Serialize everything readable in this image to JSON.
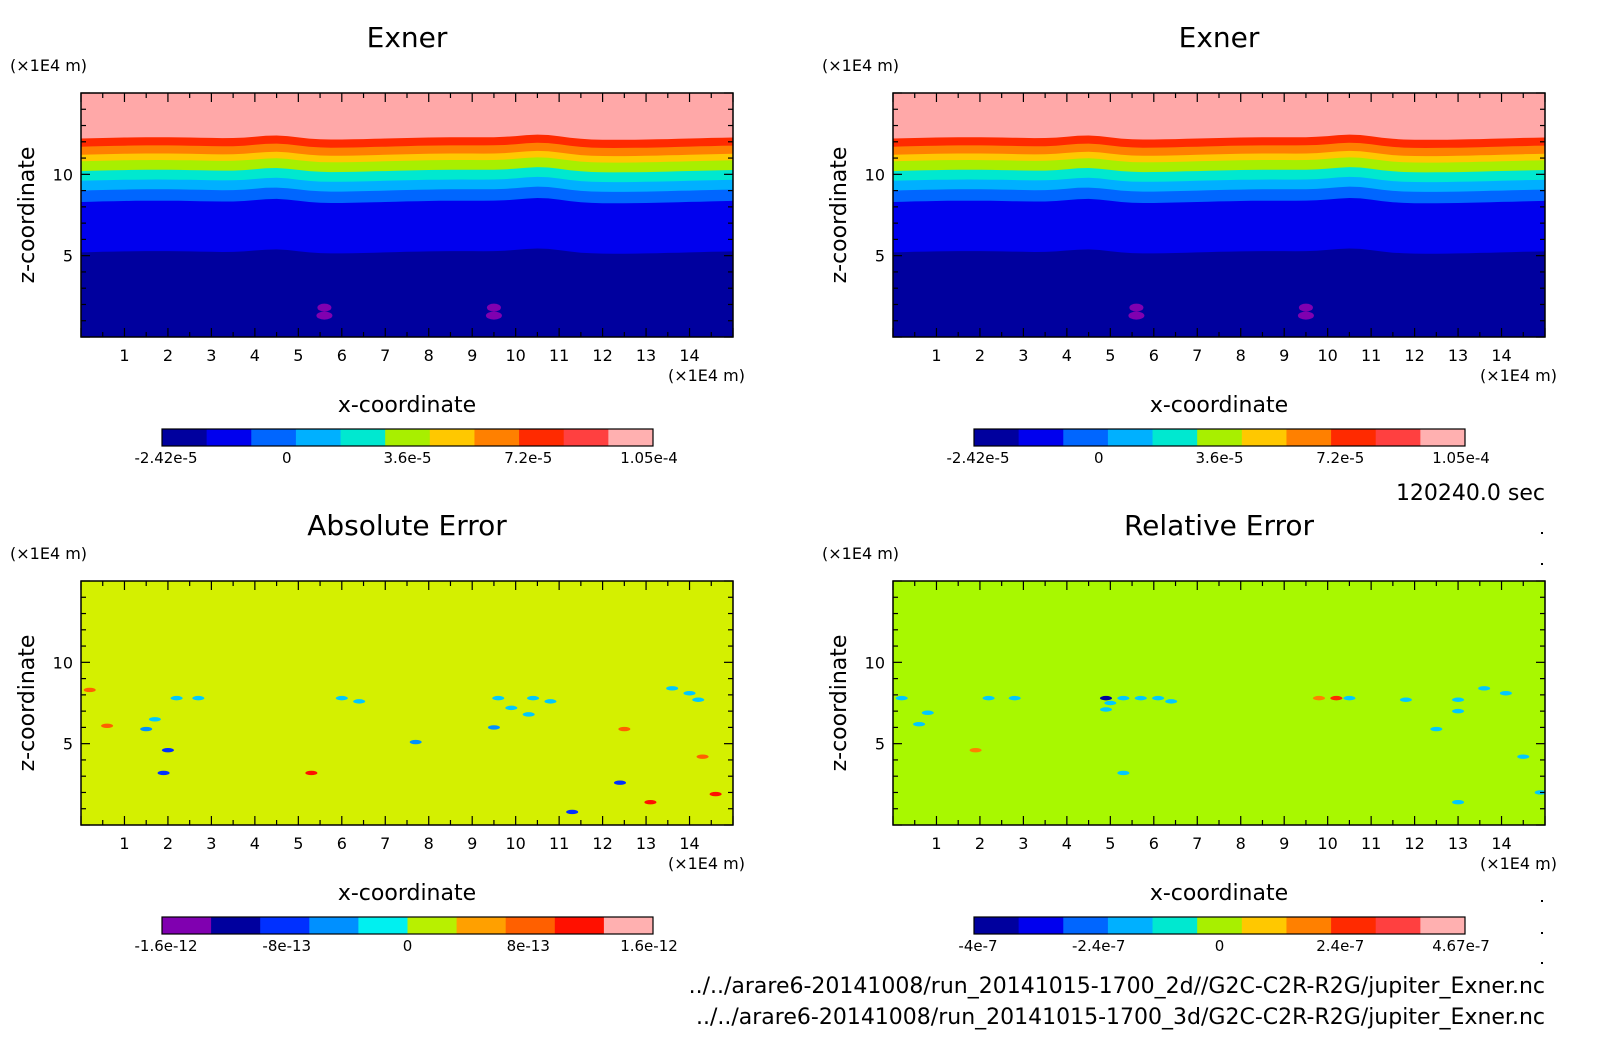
{
  "time_label": "120240.0 sec",
  "files": [
    "../../arare6-20141008/run_20141015-1700_2d//G2C-C2R-R2G/jupiter_Exner.nc",
    "../../arare6-20141008/run_20141015-1700_3d/G2C-C2R-R2G/jupiter_Exner.nc"
  ],
  "chart_data": [
    {
      "type": "heatmap",
      "title": "Exner",
      "xlabel": "x-coordinate",
      "ylabel": "z-coordinate",
      "x_unit": "(×1E4 m)",
      "y_unit": "(×1E4 m)",
      "xlim": [
        0,
        15
      ],
      "ylim": [
        0,
        15
      ],
      "x_ticks": [
        1,
        2,
        3,
        4,
        5,
        6,
        7,
        8,
        9,
        10,
        11,
        12,
        13,
        14
      ],
      "y_ticks": [
        5,
        10
      ],
      "colorbar": {
        "colors": [
          "#00009e",
          "#0000ee",
          "#0066ff",
          "#00b0ff",
          "#00e8d0",
          "#a8ef00",
          "#ffc800",
          "#ff8000",
          "#ff2a00",
          "#ff4040",
          "#ffb0b0"
        ],
        "tick_labels": [
          "-2.42e-5",
          "0",
          "3.6e-5",
          "7.2e-5",
          "1.05e-4"
        ]
      },
      "bands": [
        {
          "z_top": 15,
          "color": "#ffa8a8"
        },
        {
          "z_top": 12.2,
          "color": "#ff2a00"
        },
        {
          "z_top": 11.7,
          "color": "#ff8000"
        },
        {
          "z_top": 11.2,
          "color": "#ffc800"
        },
        {
          "z_top": 10.8,
          "color": "#a8ef00"
        },
        {
          "z_top": 10.2,
          "color": "#00e8d0"
        },
        {
          "z_top": 9.6,
          "color": "#00b0ff"
        },
        {
          "z_top": 9.0,
          "color": "#0066ff"
        },
        {
          "z_top": 8.3,
          "color": "#0000ee"
        },
        {
          "z_top": 5.2,
          "color": "#00009e"
        }
      ],
      "blobs": [
        {
          "x": 5.6,
          "z": 1.5,
          "color": "#8000b0"
        },
        {
          "x": 9.5,
          "z": 1.5,
          "color": "#8000b0"
        }
      ]
    },
    {
      "type": "heatmap",
      "title": "Exner",
      "xlabel": "x-coordinate",
      "ylabel": "z-coordinate",
      "x_unit": "(×1E4 m)",
      "y_unit": "(×1E4 m)",
      "xlim": [
        0,
        15
      ],
      "ylim": [
        0,
        15
      ],
      "x_ticks": [
        1,
        2,
        3,
        4,
        5,
        6,
        7,
        8,
        9,
        10,
        11,
        12,
        13,
        14
      ],
      "y_ticks": [
        5,
        10
      ],
      "colorbar": {
        "colors": [
          "#00009e",
          "#0000ee",
          "#0066ff",
          "#00b0ff",
          "#00e8d0",
          "#a8ef00",
          "#ffc800",
          "#ff8000",
          "#ff2a00",
          "#ff4040",
          "#ffb0b0"
        ],
        "tick_labels": [
          "-2.42e-5",
          "0",
          "3.6e-5",
          "7.2e-5",
          "1.05e-4"
        ]
      },
      "bands": [
        {
          "z_top": 15,
          "color": "#ffa8a8"
        },
        {
          "z_top": 12.2,
          "color": "#ff2a00"
        },
        {
          "z_top": 11.7,
          "color": "#ff8000"
        },
        {
          "z_top": 11.2,
          "color": "#ffc800"
        },
        {
          "z_top": 10.8,
          "color": "#a8ef00"
        },
        {
          "z_top": 10.2,
          "color": "#00e8d0"
        },
        {
          "z_top": 9.6,
          "color": "#00b0ff"
        },
        {
          "z_top": 9.0,
          "color": "#0066ff"
        },
        {
          "z_top": 8.3,
          "color": "#0000ee"
        },
        {
          "z_top": 5.2,
          "color": "#00009e"
        }
      ],
      "blobs": [
        {
          "x": 5.6,
          "z": 1.5,
          "color": "#8000b0"
        },
        {
          "x": 9.5,
          "z": 1.5,
          "color": "#8000b0"
        }
      ]
    },
    {
      "type": "heatmap",
      "title": "Absolute Error",
      "xlabel": "x-coordinate",
      "ylabel": "z-coordinate",
      "x_unit": "(×1E4 m)",
      "y_unit": "(×1E4 m)",
      "xlim": [
        0,
        15
      ],
      "ylim": [
        0,
        15
      ],
      "x_ticks": [
        1,
        2,
        3,
        4,
        5,
        6,
        7,
        8,
        9,
        10,
        11,
        12,
        13,
        14
      ],
      "y_ticks": [
        5,
        10
      ],
      "background": "#d4f000",
      "colorbar": {
        "colors": [
          "#8000b0",
          "#00009e",
          "#0030ff",
          "#0090ff",
          "#00f0f0",
          "#b8f000",
          "#ffa000",
          "#ff6000",
          "#ff1000",
          "#ffb0b0"
        ],
        "tick_labels": [
          "-1.6e-12",
          "-8e-13",
          "0",
          "8e-13",
          "1.6e-12"
        ]
      },
      "blobs": [
        {
          "x": 2.2,
          "z": 7.8,
          "color": "#00c8ff"
        },
        {
          "x": 2.7,
          "z": 7.8,
          "color": "#00c8ff"
        },
        {
          "x": 1.7,
          "z": 6.5,
          "color": "#00c8ff"
        },
        {
          "x": 1.5,
          "z": 5.9,
          "color": "#0090ff"
        },
        {
          "x": 2.0,
          "z": 4.6,
          "color": "#0030ff"
        },
        {
          "x": 1.9,
          "z": 3.2,
          "color": "#0030ff"
        },
        {
          "x": 0.6,
          "z": 6.1,
          "color": "#ff6000"
        },
        {
          "x": 5.3,
          "z": 3.2,
          "color": "#ff1000"
        },
        {
          "x": 6.0,
          "z": 7.8,
          "color": "#00c8ff"
        },
        {
          "x": 6.4,
          "z": 7.6,
          "color": "#00c8ff"
        },
        {
          "x": 7.7,
          "z": 5.1,
          "color": "#0090ff"
        },
        {
          "x": 9.6,
          "z": 7.8,
          "color": "#00c8ff"
        },
        {
          "x": 9.9,
          "z": 7.2,
          "color": "#00c8ff"
        },
        {
          "x": 10.4,
          "z": 7.8,
          "color": "#00c8ff"
        },
        {
          "x": 10.8,
          "z": 7.6,
          "color": "#00c8ff"
        },
        {
          "x": 10.3,
          "z": 6.8,
          "color": "#00c8ff"
        },
        {
          "x": 9.5,
          "z": 6.0,
          "color": "#0090ff"
        },
        {
          "x": 11.3,
          "z": 0.8,
          "color": "#0030ff"
        },
        {
          "x": 12.4,
          "z": 2.6,
          "color": "#0030ff"
        },
        {
          "x": 12.5,
          "z": 5.9,
          "color": "#ff6000"
        },
        {
          "x": 13.1,
          "z": 1.4,
          "color": "#ff1000"
        },
        {
          "x": 13.6,
          "z": 8.4,
          "color": "#00c8ff"
        },
        {
          "x": 14.0,
          "z": 8.1,
          "color": "#00c8ff"
        },
        {
          "x": 14.2,
          "z": 7.7,
          "color": "#00c8ff"
        },
        {
          "x": 14.3,
          "z": 4.2,
          "color": "#ff6000"
        },
        {
          "x": 14.6,
          "z": 1.9,
          "color": "#ff1000"
        },
        {
          "x": 0.2,
          "z": 8.3,
          "color": "#ff6000"
        }
      ]
    },
    {
      "type": "heatmap",
      "title": "Relative Error",
      "xlabel": "x-coordinate",
      "ylabel": "z-coordinate",
      "x_unit": "(×1E4 m)",
      "y_unit": "(×1E4 m)",
      "xlim": [
        0,
        15
      ],
      "ylim": [
        0,
        15
      ],
      "x_ticks": [
        1,
        2,
        3,
        4,
        5,
        6,
        7,
        8,
        9,
        10,
        11,
        12,
        13,
        14
      ],
      "y_ticks": [
        5,
        10
      ],
      "background": "#a8f800",
      "colorbar": {
        "colors": [
          "#00009e",
          "#0000ee",
          "#0066ff",
          "#00b0ff",
          "#00e8d0",
          "#a8ef00",
          "#ffc800",
          "#ff8000",
          "#ff2a00",
          "#ff4040",
          "#ffb0b0"
        ],
        "tick_labels": [
          "-4e-7",
          "-2.4e-7",
          "0",
          "2.4e-7",
          "4.67e-7"
        ]
      },
      "blobs": [
        {
          "x": 0.2,
          "z": 7.8,
          "color": "#00c8ff"
        },
        {
          "x": 0.8,
          "z": 6.9,
          "color": "#00c8ff"
        },
        {
          "x": 0.6,
          "z": 6.2,
          "color": "#00c8ff"
        },
        {
          "x": 2.2,
          "z": 7.8,
          "color": "#00c8ff"
        },
        {
          "x": 2.8,
          "z": 7.8,
          "color": "#00c8ff"
        },
        {
          "x": 4.9,
          "z": 7.8,
          "color": "#00009e"
        },
        {
          "x": 5.0,
          "z": 7.5,
          "color": "#00c8ff"
        },
        {
          "x": 4.9,
          "z": 7.1,
          "color": "#00c8ff"
        },
        {
          "x": 5.3,
          "z": 7.8,
          "color": "#00c8ff"
        },
        {
          "x": 5.7,
          "z": 7.8,
          "color": "#00c8ff"
        },
        {
          "x": 6.1,
          "z": 7.8,
          "color": "#00c8ff"
        },
        {
          "x": 6.4,
          "z": 7.6,
          "color": "#00c8ff"
        },
        {
          "x": 5.3,
          "z": 3.2,
          "color": "#00c8ff"
        },
        {
          "x": 1.9,
          "z": 4.6,
          "color": "#ff8000"
        },
        {
          "x": 9.8,
          "z": 7.8,
          "color": "#ff8000"
        },
        {
          "x": 10.2,
          "z": 7.8,
          "color": "#ff2a00"
        },
        {
          "x": 10.5,
          "z": 7.8,
          "color": "#00c8ff"
        },
        {
          "x": 11.8,
          "z": 7.7,
          "color": "#00c8ff"
        },
        {
          "x": 13.0,
          "z": 7.7,
          "color": "#00c8ff"
        },
        {
          "x": 13.0,
          "z": 7.0,
          "color": "#00c8ff"
        },
        {
          "x": 12.5,
          "z": 5.9,
          "color": "#00c8ff"
        },
        {
          "x": 13.6,
          "z": 8.4,
          "color": "#00c8ff"
        },
        {
          "x": 14.1,
          "z": 8.1,
          "color": "#00c8ff"
        },
        {
          "x": 14.5,
          "z": 4.2,
          "color": "#00c8ff"
        },
        {
          "x": 14.9,
          "z": 2.0,
          "color": "#00c8ff"
        },
        {
          "x": 13.0,
          "z": 1.4,
          "color": "#00c8ff"
        }
      ]
    }
  ]
}
